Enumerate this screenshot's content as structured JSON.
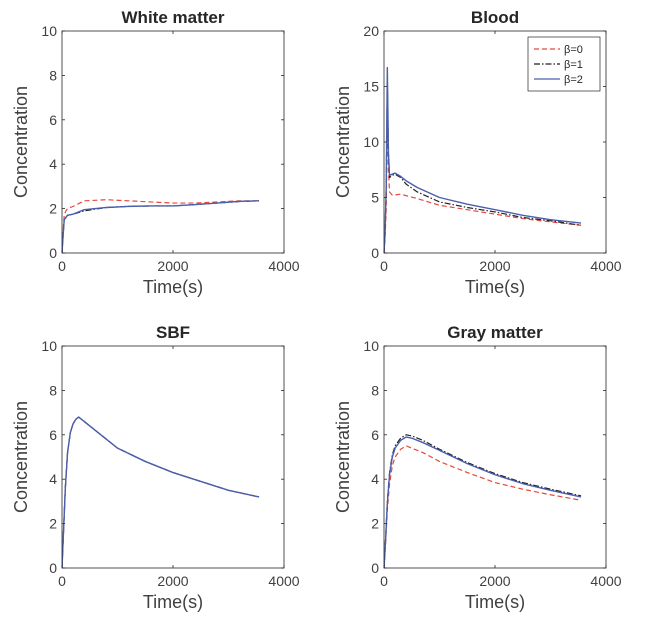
{
  "chart_data": [
    {
      "type": "line",
      "title": "White matter",
      "xlabel": "Time(s)",
      "ylabel": "Concentration",
      "xlim": [
        0,
        4000
      ],
      "ylim": [
        0,
        10
      ],
      "xticks": [
        0,
        2000,
        4000
      ],
      "yticks": [
        0,
        2,
        4,
        6,
        8,
        10
      ],
      "legend": null,
      "series": [
        {
          "style": "dashed",
          "color": "#e8473b",
          "x": [
            0,
            15,
            40,
            70,
            100,
            200,
            400,
            800,
            1200,
            1600,
            2000,
            2400,
            2800,
            3200,
            3550
          ],
          "y": [
            0,
            0.8,
            1.7,
            1.9,
            2.0,
            2.1,
            2.35,
            2.4,
            2.35,
            2.3,
            2.25,
            2.25,
            2.3,
            2.35,
            2.35
          ]
        },
        {
          "style": "dashdot",
          "color": "#222222",
          "x": [
            0,
            15,
            40,
            70,
            100,
            200,
            400,
            800,
            1200,
            1600,
            2000,
            2400,
            2800,
            3200,
            3550
          ],
          "y": [
            0,
            0.6,
            1.5,
            1.6,
            1.7,
            1.75,
            1.9,
            2.05,
            2.1,
            2.12,
            2.12,
            2.18,
            2.25,
            2.32,
            2.35
          ]
        },
        {
          "style": "solid",
          "color": "#4a5fad",
          "x": [
            0,
            15,
            40,
            70,
            100,
            200,
            400,
            800,
            1200,
            1600,
            2000,
            2400,
            2800,
            3200,
            3550
          ],
          "y": [
            0,
            0.6,
            1.5,
            1.6,
            1.7,
            1.75,
            1.95,
            2.05,
            2.1,
            2.12,
            2.12,
            2.18,
            2.25,
            2.33,
            2.35
          ]
        }
      ]
    },
    {
      "type": "line",
      "title": "Blood",
      "xlabel": "Time(s)",
      "ylabel": "Concentration",
      "xlim": [
        0,
        4000
      ],
      "ylim": [
        0,
        20
      ],
      "xticks": [
        0,
        2000,
        4000
      ],
      "yticks": [
        0,
        5,
        10,
        15,
        20
      ],
      "legend": {
        "position": "top-right",
        "entries": [
          "β=0",
          "β=1",
          "β=2"
        ]
      },
      "series": [
        {
          "style": "dashed",
          "color": "#e8473b",
          "x": [
            0,
            20,
            40,
            60,
            80,
            100,
            150,
            300,
            600,
            1000,
            1500,
            2000,
            2500,
            3000,
            3550
          ],
          "y": [
            0,
            1.5,
            4.0,
            12.5,
            7.5,
            5.5,
            5.2,
            5.3,
            4.9,
            4.3,
            3.9,
            3.5,
            3.1,
            2.8,
            2.5
          ]
        },
        {
          "style": "dashdot",
          "color": "#222222",
          "x": [
            0,
            20,
            40,
            60,
            80,
            100,
            150,
            200,
            300,
            400,
            600,
            1000,
            1500,
            2000,
            2500,
            3000,
            3550
          ],
          "y": [
            0,
            2.0,
            6.0,
            15.5,
            9.0,
            6.8,
            7.0,
            7.1,
            6.8,
            6.2,
            5.5,
            4.6,
            4.1,
            3.7,
            3.2,
            2.9,
            2.5
          ]
        },
        {
          "style": "solid",
          "color": "#4a5fad",
          "x": [
            0,
            20,
            40,
            60,
            80,
            100,
            150,
            200,
            300,
            400,
            600,
            1000,
            1500,
            2000,
            2500,
            3000,
            3550
          ],
          "y": [
            0,
            2.0,
            6.0,
            16.7,
            9.0,
            7.0,
            7.1,
            7.2,
            6.9,
            6.5,
            5.9,
            5.0,
            4.4,
            3.9,
            3.4,
            3.0,
            2.7
          ]
        }
      ]
    },
    {
      "type": "line",
      "title": "SBF",
      "xlabel": "Time(s)",
      "ylabel": "Concentration",
      "xlim": [
        0,
        4000
      ],
      "ylim": [
        0,
        10
      ],
      "xticks": [
        0,
        2000,
        4000
      ],
      "yticks": [
        0,
        2,
        4,
        6,
        8,
        10
      ],
      "legend": null,
      "series": [
        {
          "style": "dashed",
          "color": "#e8473b",
          "x": [
            0,
            30,
            60,
            100,
            150,
            200,
            250,
            300,
            400,
            500,
            700,
            1000,
            1500,
            2000,
            2500,
            3000,
            3550
          ],
          "y": [
            0,
            1.8,
            3.6,
            5.2,
            6.1,
            6.5,
            6.7,
            6.8,
            6.6,
            6.4,
            6.0,
            5.4,
            4.8,
            4.3,
            3.9,
            3.5,
            3.2
          ]
        },
        {
          "style": "dashdot",
          "color": "#222222",
          "x": [
            0,
            30,
            60,
            100,
            150,
            200,
            250,
            300,
            400,
            500,
            700,
            1000,
            1500,
            2000,
            2500,
            3000,
            3550
          ],
          "y": [
            0,
            1.8,
            3.6,
            5.2,
            6.1,
            6.5,
            6.7,
            6.8,
            6.6,
            6.4,
            6.0,
            5.4,
            4.8,
            4.3,
            3.9,
            3.5,
            3.2
          ]
        },
        {
          "style": "solid",
          "color": "#4a5fad",
          "x": [
            0,
            30,
            60,
            100,
            150,
            200,
            250,
            300,
            400,
            500,
            700,
            1000,
            1500,
            2000,
            2500,
            3000,
            3550
          ],
          "y": [
            0,
            1.8,
            3.6,
            5.2,
            6.1,
            6.5,
            6.7,
            6.8,
            6.6,
            6.4,
            6.0,
            5.4,
            4.8,
            4.3,
            3.9,
            3.5,
            3.2
          ]
        }
      ]
    },
    {
      "type": "line",
      "title": "Gray matter",
      "xlabel": "Time(s)",
      "ylabel": "Concentration",
      "xlim": [
        0,
        4000
      ],
      "ylim": [
        0,
        10
      ],
      "xticks": [
        0,
        2000,
        4000
      ],
      "yticks": [
        0,
        2,
        4,
        6,
        8,
        10
      ],
      "legend": null,
      "series": [
        {
          "style": "dashed",
          "color": "#e8473b",
          "x": [
            0,
            30,
            60,
            100,
            150,
            200,
            300,
            400,
            500,
            700,
            1000,
            1500,
            2000,
            2500,
            3000,
            3550
          ],
          "y": [
            0,
            1.2,
            2.6,
            3.8,
            4.6,
            5.0,
            5.35,
            5.5,
            5.4,
            5.2,
            4.8,
            4.3,
            3.85,
            3.55,
            3.3,
            3.05
          ]
        },
        {
          "style": "dashdot",
          "color": "#222222",
          "x": [
            0,
            30,
            60,
            100,
            150,
            200,
            300,
            400,
            500,
            700,
            1000,
            1500,
            2000,
            2500,
            3000,
            3550
          ],
          "y": [
            0,
            1.4,
            3.0,
            4.3,
            5.1,
            5.5,
            5.85,
            6.0,
            5.95,
            5.75,
            5.35,
            4.75,
            4.25,
            3.85,
            3.55,
            3.25
          ]
        },
        {
          "style": "solid",
          "color": "#4a5fad",
          "x": [
            0,
            30,
            60,
            100,
            150,
            200,
            300,
            400,
            500,
            700,
            1000,
            1500,
            2000,
            2500,
            3000,
            3550
          ],
          "y": [
            0,
            1.3,
            2.9,
            4.2,
            5.0,
            5.4,
            5.75,
            5.9,
            5.85,
            5.65,
            5.3,
            4.7,
            4.2,
            3.8,
            3.5,
            3.2
          ]
        }
      ]
    }
  ]
}
